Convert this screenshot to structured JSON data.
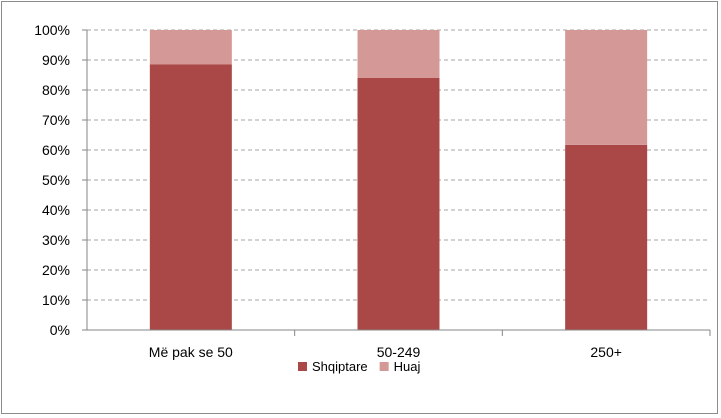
{
  "chart_data": {
    "type": "bar",
    "stacked": true,
    "categories": [
      "Më pak se 50",
      "50-249",
      "250+"
    ],
    "series": [
      {
        "name": "Shqiptare",
        "color": "#a94846",
        "values": [
          88.5,
          84.0,
          61.7
        ]
      },
      {
        "name": "Huaj",
        "color": "#d49897",
        "values": [
          11.5,
          16.0,
          38.3
        ]
      }
    ],
    "yticks": [
      "0%",
      "10%",
      "20%",
      "30%",
      "40%",
      "50%",
      "60%",
      "70%",
      "80%",
      "90%",
      "100%"
    ],
    "ylim": [
      0,
      100
    ],
    "grid": true,
    "legend": "bottom"
  }
}
